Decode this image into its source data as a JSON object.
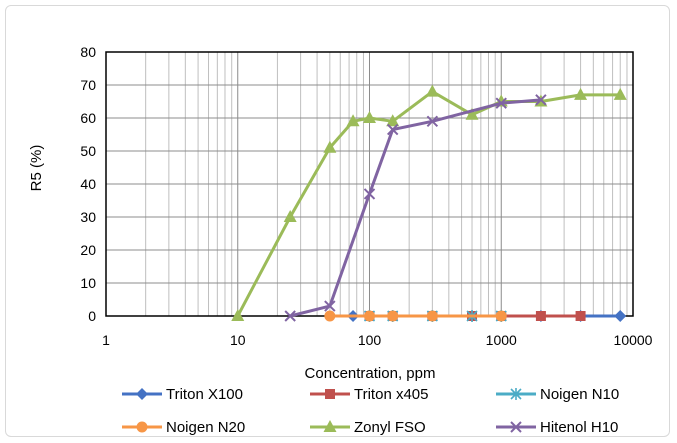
{
  "chart_data": {
    "type": "line",
    "title": "",
    "xlabel": "Concentration, ppm",
    "ylabel": "R5 (%)",
    "x_scale": "log",
    "xlim": [
      1,
      10000
    ],
    "ylim": [
      0,
      80
    ],
    "x_ticks": [
      "1",
      "10",
      "100",
      "1000",
      "10000"
    ],
    "y_ticks": [
      "0",
      "10",
      "20",
      "30",
      "40",
      "50",
      "60",
      "70",
      "80"
    ],
    "grid": "on",
    "legend_position": "bottom",
    "series": [
      {
        "name": "Triton X100",
        "color": "#4472c4",
        "marker": "diamond",
        "x": [
          75,
          100,
          150,
          300,
          600,
          1000,
          2000,
          4000,
          8000
        ],
        "y": [
          0,
          0,
          0,
          0,
          0,
          0,
          0,
          0,
          0
        ]
      },
      {
        "name": "Triton x405",
        "color": "#c0504d",
        "marker": "square",
        "x": [
          100,
          150,
          300,
          600,
          1000,
          2000,
          4000
        ],
        "y": [
          0,
          0,
          0,
          0,
          0,
          0,
          0
        ]
      },
      {
        "name": "Noigen N10",
        "color": "#4bacc6",
        "marker": "star",
        "x": [
          100,
          150,
          300,
          600,
          1000
        ],
        "y": [
          0,
          0,
          0,
          0,
          0
        ]
      },
      {
        "name": "Noigen N20",
        "color": "#f79646",
        "marker": "circle",
        "x": [
          50,
          100,
          150,
          300,
          1000
        ],
        "y": [
          0,
          0,
          0,
          0,
          0
        ]
      },
      {
        "name": "Zonyl FSO",
        "color": "#9bbb59",
        "marker": "triangle",
        "x": [
          10,
          25,
          50,
          75,
          100,
          150,
          300,
          600,
          1000,
          2000,
          4000,
          8000
        ],
        "y": [
          0,
          30,
          51,
          59,
          60,
          59,
          68,
          61,
          65,
          65,
          67,
          67
        ]
      },
      {
        "name": "Hitenol H10",
        "color": "#8064a2",
        "marker": "x",
        "x": [
          25,
          50,
          100,
          150,
          300,
          1000,
          2000
        ],
        "y": [
          0,
          3,
          37,
          56.5,
          59,
          64.5,
          65.5
        ]
      }
    ]
  }
}
